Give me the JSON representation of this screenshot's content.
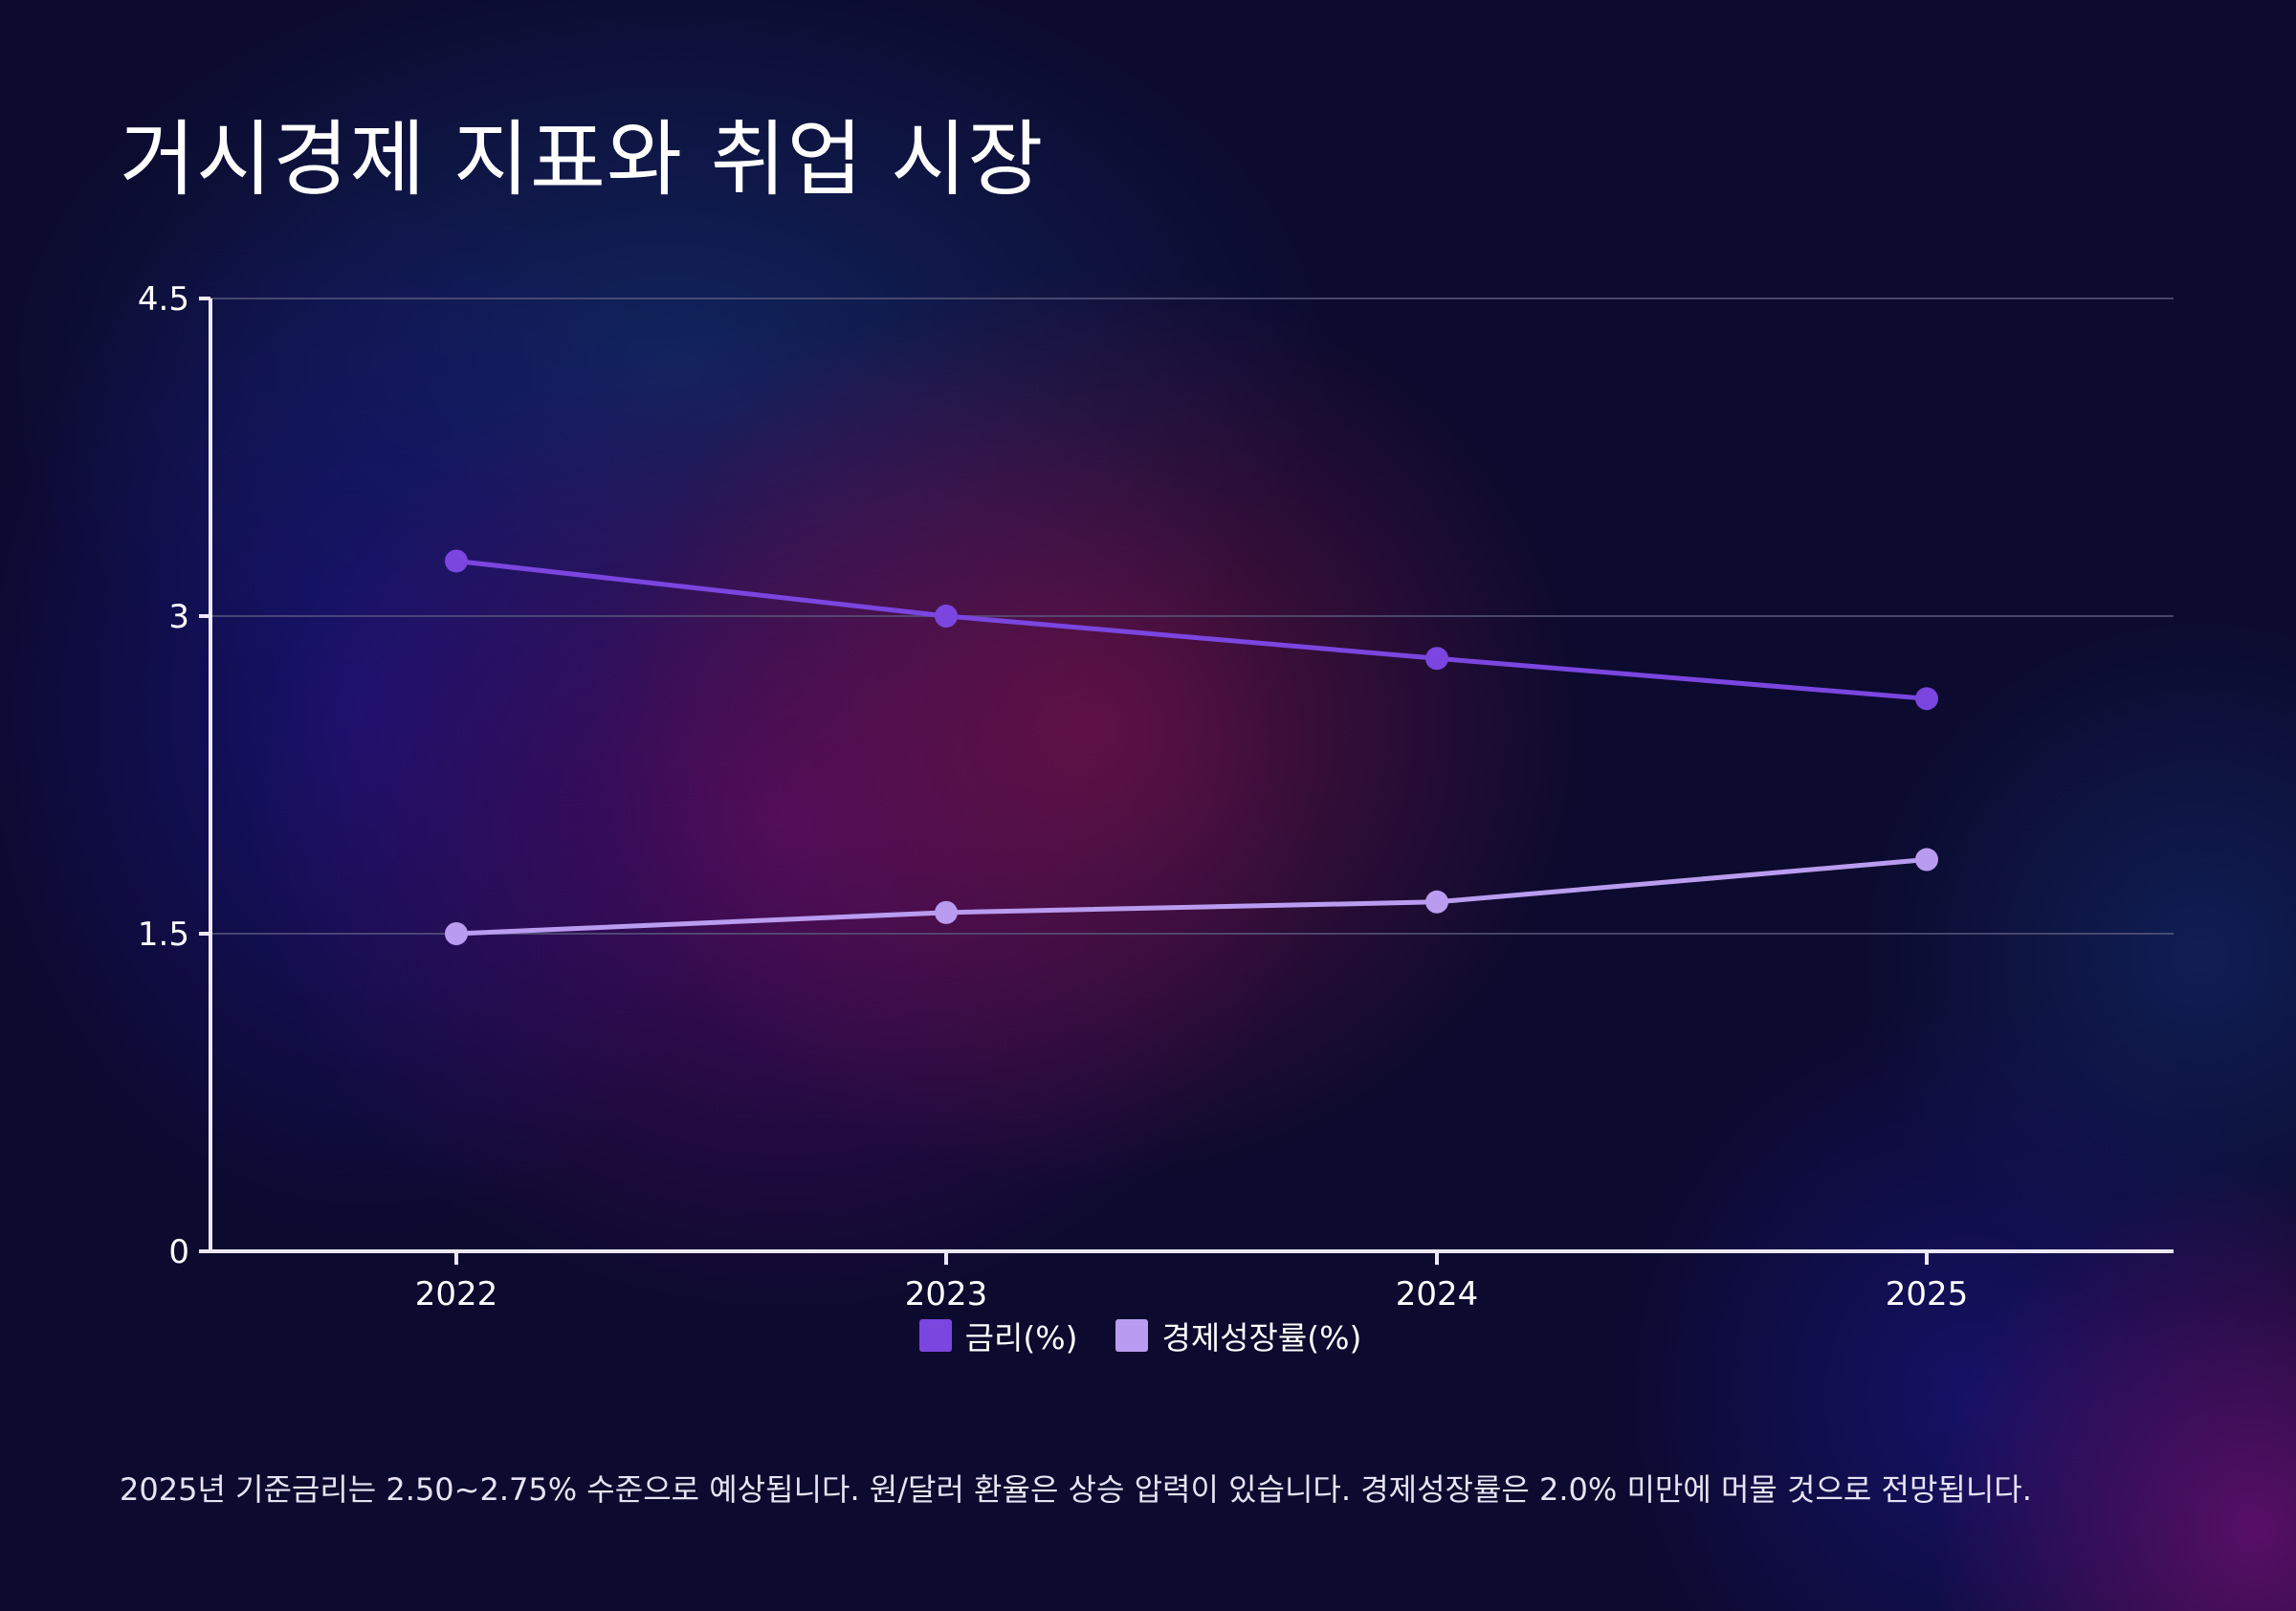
{
  "title": "거시경제 지표와 취업 시장",
  "footnote": "2025년 기준금리는 2.50~2.75% 수준으로 예상됩니다. 원/달러 환율은 상승 압력이 있습니다. 경제성장률은 2.0% 미만에 머물 것으로 전망됩니다.",
  "colors": {
    "series_1": "#7b45e0",
    "series_2": "#b99cf0",
    "axis": "#ece8f6",
    "grid": "#5a587e"
  },
  "chart_data": {
    "type": "line",
    "title": "거시경제 지표와 취업 시장",
    "xlabel": "",
    "ylabel": "",
    "categories": [
      "2022",
      "2023",
      "2024",
      "2025"
    ],
    "ylim": [
      0,
      4.5
    ],
    "yticks": [
      0,
      1.5,
      3,
      4.5
    ],
    "ytick_labels": [
      "0",
      "1.5",
      "3",
      "4.5"
    ],
    "grid": true,
    "legend_position": "bottom",
    "series": [
      {
        "name": "금리(%)",
        "values": [
          3.26,
          3.0,
          2.8,
          2.61
        ]
      },
      {
        "name": "경제성장률(%)",
        "values": [
          1.5,
          1.6,
          1.65,
          1.85
        ]
      }
    ]
  }
}
